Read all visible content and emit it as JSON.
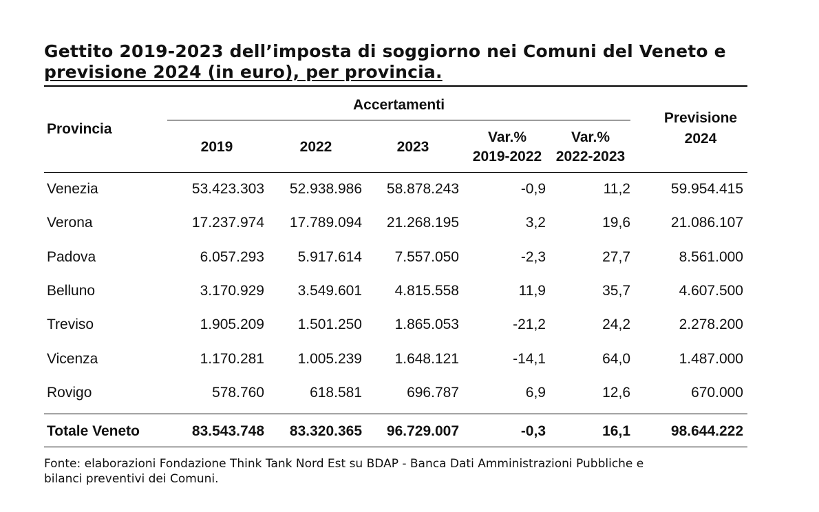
{
  "title": {
    "line1": "Gettito 2019-2023 dell’imposta di soggiorno nei Comuni del Veneto e",
    "line2": "previsione 2024 (in euro), per provincia."
  },
  "header": {
    "provincia": "Provincia",
    "accertamenti": "Accertamenti",
    "y2019": "2019",
    "y2022": "2022",
    "y2023": "2023",
    "var1_top": "Var.%",
    "var1_bottom": "2019-2022",
    "var2_top": "Var.%",
    "var2_bottom": "2022-2023",
    "prev_top": "Previsione",
    "prev_bottom": "2024"
  },
  "rows": [
    {
      "prov": "Venezia",
      "y2019": "53.423.303",
      "y2022": "52.938.986",
      "y2023": "58.878.243",
      "var1": "-0,9",
      "var2": "11,2",
      "prev": "59.954.415"
    },
    {
      "prov": "Verona",
      "y2019": "17.237.974",
      "y2022": "17.789.094",
      "y2023": "21.268.195",
      "var1": "3,2",
      "var2": "19,6",
      "prev": "21.086.107"
    },
    {
      "prov": "Padova",
      "y2019": "6.057.293",
      "y2022": "5.917.614",
      "y2023": "7.557.050",
      "var1": "-2,3",
      "var2": "27,7",
      "prev": "8.561.000"
    },
    {
      "prov": "Belluno",
      "y2019": "3.170.929",
      "y2022": "3.549.601",
      "y2023": "4.815.558",
      "var1": "11,9",
      "var2": "35,7",
      "prev": "4.607.500"
    },
    {
      "prov": "Treviso",
      "y2019": "1.905.209",
      "y2022": "1.501.250",
      "y2023": "1.865.053",
      "var1": "-21,2",
      "var2": "24,2",
      "prev": "2.278.200"
    },
    {
      "prov": "Vicenza",
      "y2019": "1.170.281",
      "y2022": "1.005.239",
      "y2023": "1.648.121",
      "var1": "-14,1",
      "var2": "64,0",
      "prev": "1.487.000"
    },
    {
      "prov": "Rovigo",
      "y2019": "578.760",
      "y2022": "618.581",
      "y2023": "696.787",
      "var1": "6,9",
      "var2": "12,6",
      "prev": "670.000"
    }
  ],
  "total": {
    "prov": "Totale Veneto",
    "y2019": "83.543.748",
    "y2022": "83.320.365",
    "y2023": "96.729.007",
    "var1": "-0,3",
    "var2": "16,1",
    "prev": "98.644.222"
  },
  "source": {
    "line1": "Fonte: elaborazioni Fondazione Think Tank Nord Est su BDAP - Banca Dati Amministrazioni Pubbliche e",
    "line2": "bilanci preventivi dei Comuni."
  }
}
